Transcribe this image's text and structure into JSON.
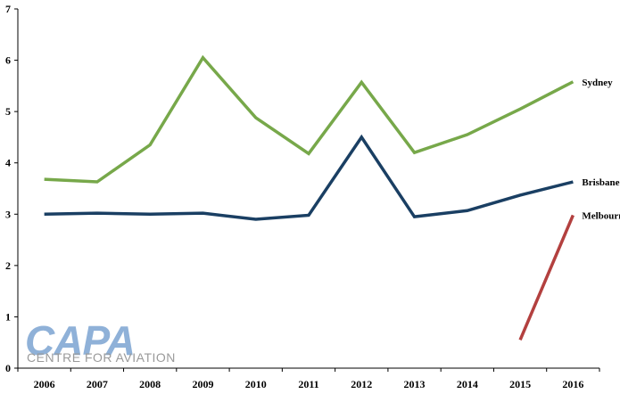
{
  "chart_data": {
    "type": "line",
    "title": "",
    "xlabel": "",
    "ylabel": "",
    "x": [
      "2006",
      "2007",
      "2008",
      "2009",
      "2010",
      "2011",
      "2012",
      "2013",
      "2014",
      "2015",
      "2016"
    ],
    "ylim": [
      0,
      7
    ],
    "yticks": [
      "0",
      "1",
      "2",
      "3",
      "4",
      "5",
      "6",
      "7"
    ],
    "grid": false,
    "legend": "inline labels at line ends (right)",
    "series": [
      {
        "name": "Sydney",
        "color": "#77a84a",
        "values": [
          3.68,
          3.63,
          4.35,
          6.05,
          4.88,
          4.18,
          5.57,
          4.2,
          4.55,
          5.05,
          5.58
        ]
      },
      {
        "name": "Brisbane",
        "color": "#1a3f63",
        "values": [
          3.0,
          3.02,
          3.0,
          3.02,
          2.9,
          2.98,
          4.5,
          2.95,
          3.07,
          3.37,
          3.63
        ]
      },
      {
        "name": "Melbourne",
        "color": "#b3403f",
        "values": [
          null,
          null,
          null,
          null,
          null,
          null,
          null,
          null,
          null,
          0.55,
          2.98
        ]
      }
    ]
  },
  "watermark": {
    "logo_text": "CAPA",
    "tagline": "CENTRE FOR AVIATION"
  }
}
